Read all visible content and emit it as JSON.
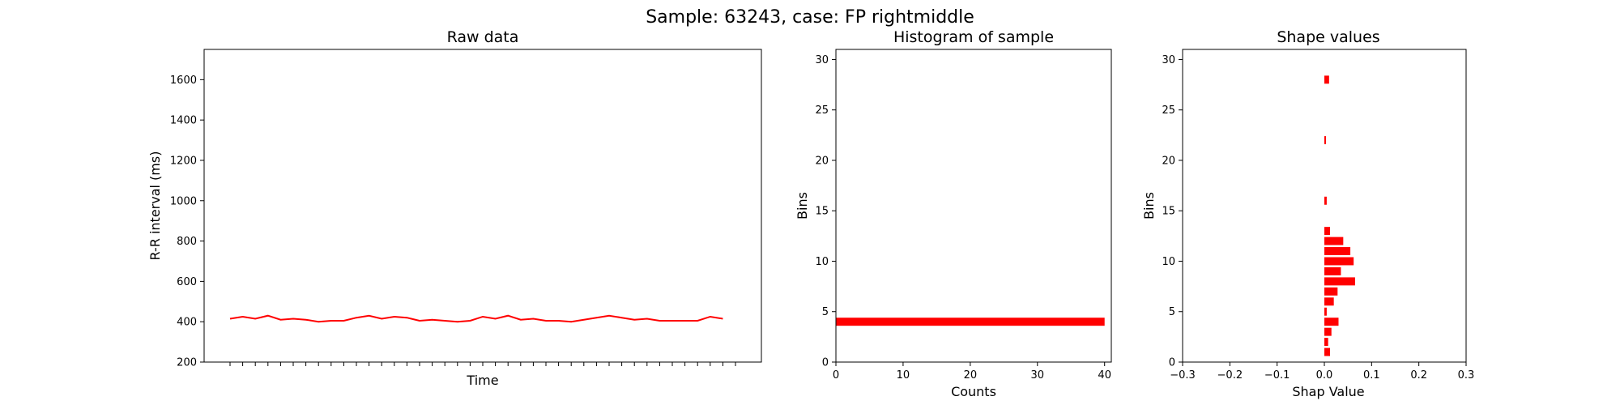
{
  "figure": {
    "suptitle": "Sample: 63243, case: FP rightmiddle"
  },
  "chart_data": [
    {
      "type": "line",
      "title": "Raw data",
      "xlabel": "Time",
      "ylabel": "R-R interval (ms)",
      "ylim": [
        200,
        1750
      ],
      "yticks": [
        200,
        400,
        600,
        800,
        1000,
        1200,
        1400,
        1600
      ],
      "xtick_labels_visible": false,
      "x": [
        0,
        1,
        2,
        3,
        4,
        5,
        6,
        7,
        8,
        9,
        10,
        11,
        12,
        13,
        14,
        15,
        16,
        17,
        18,
        19,
        20,
        21,
        22,
        23,
        24,
        25,
        26,
        27,
        28,
        29,
        30,
        31,
        32,
        33,
        34,
        35,
        36,
        37,
        38,
        39,
        40
      ],
      "values": [
        415,
        425,
        415,
        430,
        410,
        415,
        410,
        400,
        405,
        405,
        420,
        430,
        415,
        425,
        420,
        405,
        410,
        405,
        400,
        405,
        425,
        415,
        430,
        410,
        415,
        405,
        405,
        400,
        410,
        420,
        430,
        420,
        410,
        415,
        405,
        405,
        405,
        405,
        425,
        415,
        null
      ],
      "color": "#ff0000",
      "grid": false
    },
    {
      "type": "bar",
      "orientation": "horizontal",
      "title": "Histogram of sample",
      "xlabel": "Counts",
      "ylabel": "Bins",
      "xlim": [
        0,
        41
      ],
      "ylim": [
        0,
        31
      ],
      "xticks": [
        0,
        10,
        20,
        30,
        40
      ],
      "yticks": [
        0,
        5,
        10,
        15,
        20,
        25,
        30
      ],
      "bars": [
        {
          "bin": 4,
          "value": 40
        }
      ],
      "color": "#ff0000",
      "grid": false
    },
    {
      "type": "bar",
      "orientation": "horizontal",
      "title": "Shape values",
      "xlabel": "Shap Value",
      "ylabel": "Bins",
      "xlim": [
        -0.3,
        0.3
      ],
      "ylim": [
        0,
        31
      ],
      "xticks": [
        -0.3,
        -0.2,
        -0.1,
        0.0,
        0.1,
        0.2,
        0.3
      ],
      "xtick_labels": [
        "−0.3",
        "−0.2",
        "−0.1",
        "0.0",
        "0.1",
        "0.2",
        "0.3"
      ],
      "yticks": [
        0,
        5,
        10,
        15,
        20,
        25,
        30
      ],
      "bars": [
        {
          "bin": 1,
          "value": 0.012
        },
        {
          "bin": 2,
          "value": 0.008
        },
        {
          "bin": 3,
          "value": 0.015
        },
        {
          "bin": 4,
          "value": 0.03
        },
        {
          "bin": 5,
          "value": 0.005
        },
        {
          "bin": 6,
          "value": 0.02
        },
        {
          "bin": 7,
          "value": 0.028
        },
        {
          "bin": 8,
          "value": 0.065
        },
        {
          "bin": 9,
          "value": 0.035
        },
        {
          "bin": 10,
          "value": 0.062
        },
        {
          "bin": 11,
          "value": 0.055
        },
        {
          "bin": 12,
          "value": 0.04
        },
        {
          "bin": 13,
          "value": 0.012
        },
        {
          "bin": 16,
          "value": 0.005
        },
        {
          "bin": 22,
          "value": 0.003
        },
        {
          "bin": 28,
          "value": 0.01
        }
      ],
      "color": "#ff0000",
      "grid": false
    }
  ]
}
